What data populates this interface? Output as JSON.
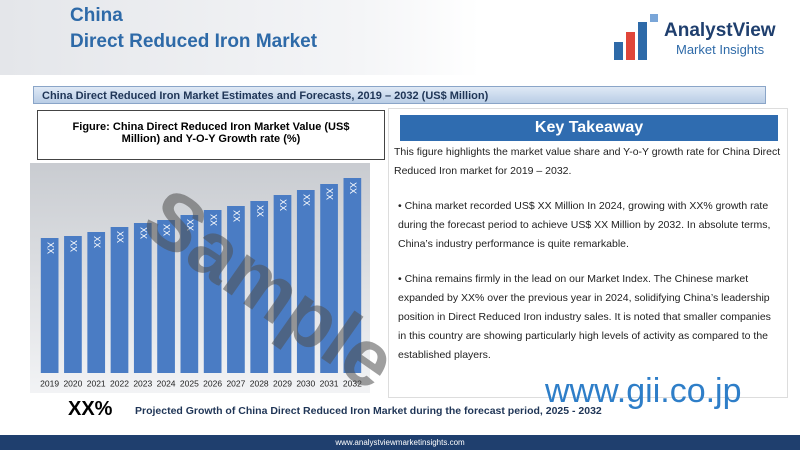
{
  "header": {
    "title_line1": "China",
    "title_line2": "Direct Reduced Iron Market",
    "logo_name": "AnalystView",
    "logo_sub": "Market Insights"
  },
  "banner": "China Direct Reduced Iron Market Estimates and Forecasts, 2019 – 2032 (US$ Million)",
  "figure_caption": "Figure: China Direct Reduced Iron Market Value (US$ Million) and Y-O-Y Growth rate (%)",
  "chart_data": {
    "type": "bar",
    "categories": [
      "2019",
      "2020",
      "2021",
      "2022",
      "2023",
      "2024",
      "2025",
      "2026",
      "2027",
      "2028",
      "2029",
      "2030",
      "2031",
      "2032"
    ],
    "values": [
      135,
      137,
      141,
      146,
      150,
      153,
      158,
      163,
      167,
      172,
      178,
      183,
      189,
      195
    ],
    "value_labels": [
      "XX",
      "XX",
      "XX",
      "XX",
      "XX",
      "XX",
      "XX",
      "XX",
      "XX",
      "XX",
      "XX",
      "XX",
      "XX",
      "XX"
    ],
    "color": "#4a7cc4"
  },
  "takeaway": {
    "title": "Key Takeaway",
    "intro": "This figure highlights the market value share and Y-o-Y growth rate for China Direct Reduced Iron market for 2019 – 2032.",
    "bullets": [
      "China market recorded US$ XX Million In 2024, growing with XX% growth rate during the forecast period to achieve US$ XX Million by 2032. In absolute terms, China’s industry performance is quite remarkable.",
      "China remains firmly in the lead on our Market Index. The Chinese market expanded by XX% over the previous year in 2024, solidifying China’s leadership position in Direct Reduced Iron industry sales. It is noted that smaller companies in this country are showing particularly high levels of activity as compared to the established players."
    ]
  },
  "footer": {
    "metric": "XX%",
    "text": "Projected Growth of China Direct Reduced Iron Market during the forecast period, 2025 - 2032",
    "website": "www.analystviewmarketinsights.com"
  },
  "watermark": "Sample",
  "gii": "www.gii.co.jp"
}
